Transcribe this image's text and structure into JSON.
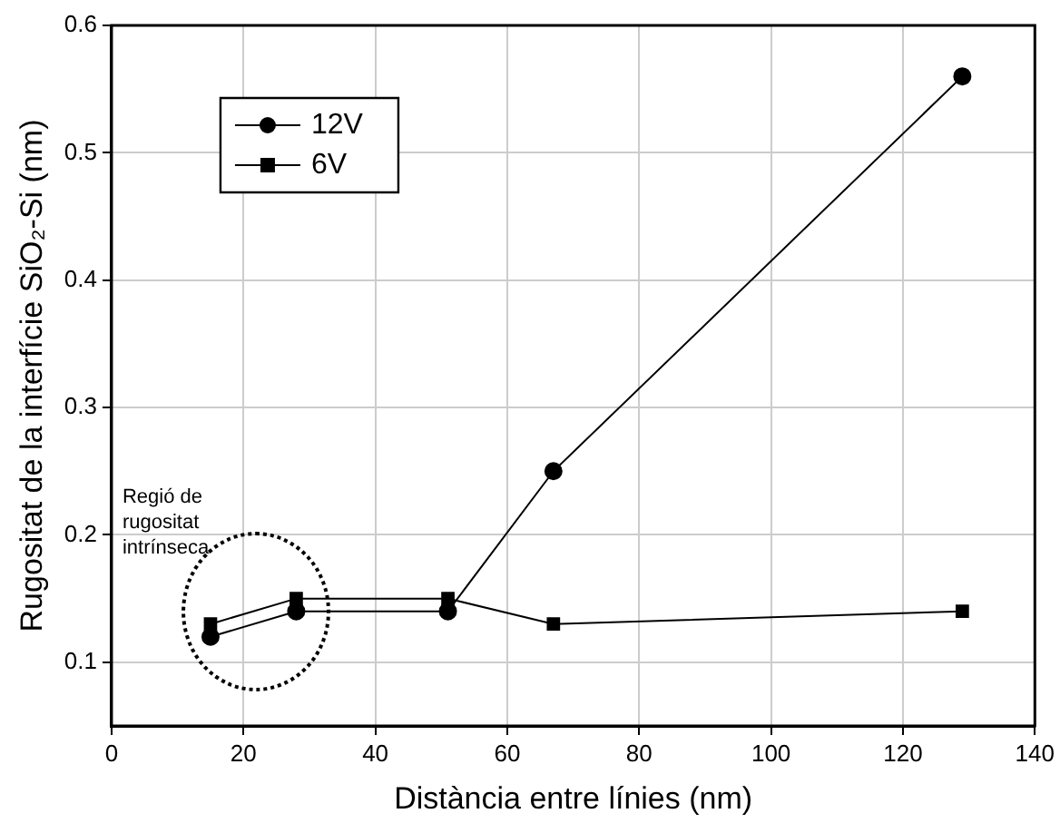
{
  "chart_data": {
    "type": "line",
    "xlabel": "Distància entre línies (nm)",
    "ylabel": "Rugositat de la interfície SiO₂-Si (nm)",
    "x": [
      15,
      28,
      51,
      67,
      129
    ],
    "series": [
      {
        "name": "12V",
        "color": "#000000",
        "marker": "circle",
        "values": [
          0.12,
          0.14,
          0.14,
          0.25,
          0.56
        ]
      },
      {
        "name": "6V",
        "color": "#000000",
        "marker": "square",
        "values": [
          0.13,
          0.15,
          0.15,
          0.13,
          0.14
        ]
      }
    ],
    "xlim": [
      0,
      140
    ],
    "xticks": [
      0,
      20,
      40,
      60,
      80,
      100,
      120,
      140
    ],
    "ylim": [
      0.05,
      0.6
    ],
    "yticks": [
      0.1,
      0.2,
      0.3,
      0.4,
      0.5,
      0.6
    ],
    "grid": true,
    "legend": "top left",
    "line_style": "solid",
    "annotations": [
      "Regió de rugositat intrínseca"
    ]
  }
}
